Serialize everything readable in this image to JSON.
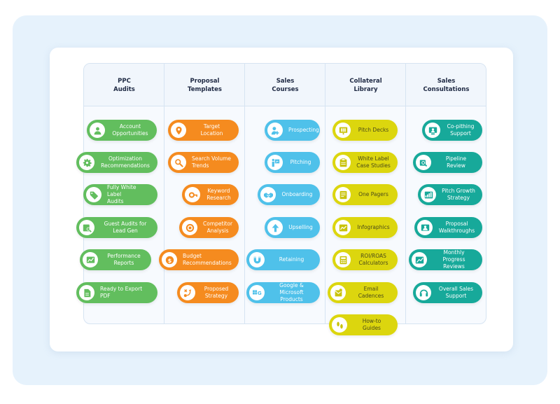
{
  "colors": {
    "green": "#62be5e",
    "orange": "#f58b1f",
    "blue": "#4fc1ea",
    "yellow": "#dcd60e",
    "teal": "#17a99a",
    "background": "#e6f2fc"
  },
  "columns": [
    {
      "title": "PPC\nAudits",
      "items": [
        {
          "label": "Account\nOpportunities",
          "icon": "user-icon"
        },
        {
          "label": "Optimization\nRecommendations",
          "icon": "gear-icon"
        },
        {
          "label": "Fully White Label\nAudits",
          "icon": "tag-icon"
        },
        {
          "label": "Guest Audits for\nLead Gen",
          "icon": "magnifier-icon"
        },
        {
          "label": "Performance\nReports",
          "icon": "chart-icon"
        },
        {
          "label": "Ready to Export\nPDF",
          "icon": "document-icon"
        }
      ]
    },
    {
      "title": "Proposal\nTemplates",
      "items": [
        {
          "label": "Target Location",
          "icon": "location-pin-icon"
        },
        {
          "label": "Search Volume\nTrends",
          "icon": "search-icon"
        },
        {
          "label": "Keyword\nResearch",
          "icon": "key-search-icon"
        },
        {
          "label": "Competitor\nAnalysis",
          "icon": "target-icon"
        },
        {
          "label": "Budget\nRecommendations",
          "icon": "dollar-icon"
        },
        {
          "label": "Proposed\nStrategy",
          "icon": "strategy-icon"
        }
      ]
    },
    {
      "title": "Sales\nCourses",
      "items": [
        {
          "label": "Prospecting",
          "icon": "person-add-icon"
        },
        {
          "label": "Pitching",
          "icon": "presentation-icon"
        },
        {
          "label": "Onboarding",
          "icon": "handshake-icon"
        },
        {
          "label": "Upselling",
          "icon": "arrow-up-icon"
        },
        {
          "label": "Retaining",
          "icon": "magnet-icon"
        },
        {
          "label": "Google &\nMicrosoft Products",
          "icon": "google-microsoft-icon"
        }
      ]
    },
    {
      "title": "Collateral\nLibrary",
      "items": [
        {
          "label": "Pitch Decks",
          "icon": "slides-icon"
        },
        {
          "label": "White Label\nCase Studies",
          "icon": "clipboard-icon"
        },
        {
          "label": "One Pagers",
          "icon": "page-icon"
        },
        {
          "label": "Infographics",
          "icon": "infographic-icon"
        },
        {
          "label": "ROI/ROAS\nCalculators",
          "icon": "calculator-icon"
        },
        {
          "label": "Email Cadences",
          "icon": "email-icon"
        },
        {
          "label": "How-to Guides",
          "icon": "footprints-icon"
        }
      ]
    },
    {
      "title": "Sales\nConsultations",
      "items": [
        {
          "label": "Co-pithing\nSupport",
          "icon": "video-call-icon"
        },
        {
          "label": "Pipeline Review",
          "icon": "pipeline-icon"
        },
        {
          "label": "Pitch Growth\nStrategy",
          "icon": "growth-icon"
        },
        {
          "label": "Proposal\nWalkthroughs",
          "icon": "walkthrough-icon"
        },
        {
          "label": "Monthly\nProgress Reviews",
          "icon": "progress-chart-icon"
        },
        {
          "label": "Overall Sales\nSupport",
          "icon": "headset-icon"
        }
      ]
    }
  ]
}
